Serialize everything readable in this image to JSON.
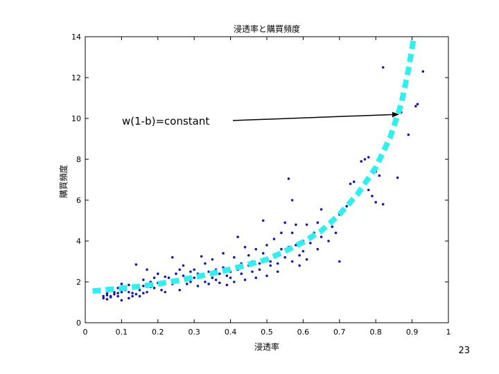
{
  "chart_data": {
    "type": "scatter",
    "title": "浸透率と購買頻度",
    "xlabel": "浸透率",
    "ylabel": "購買頻度",
    "xlim": [
      0,
      1
    ],
    "ylim": [
      0,
      14
    ],
    "x_ticks": [
      "0",
      "0.1",
      "0.2",
      "0.3",
      "0.4",
      "0.5",
      "0.6",
      "0.7",
      "0.8",
      "0.9",
      "1"
    ],
    "y_ticks": [
      "0",
      "2",
      "4",
      "6",
      "8",
      "10",
      "12",
      "14"
    ],
    "grid": false,
    "points": [
      [
        0.05,
        1.2
      ],
      [
        0.05,
        1.3
      ],
      [
        0.06,
        1.15
      ],
      [
        0.06,
        1.35
      ],
      [
        0.06,
        1.45
      ],
      [
        0.07,
        1.3
      ],
      [
        0.07,
        1.25
      ],
      [
        0.07,
        1.6
      ],
      [
        0.08,
        1.4
      ],
      [
        0.08,
        1.5
      ],
      [
        0.09,
        1.3
      ],
      [
        0.09,
        1.45
      ],
      [
        0.09,
        1.7
      ],
      [
        0.1,
        1.1
      ],
      [
        0.1,
        1.5
      ],
      [
        0.1,
        1.9
      ],
      [
        0.11,
        1.6
      ],
      [
        0.11,
        1.75
      ],
      [
        0.12,
        1.2
      ],
      [
        0.12,
        1.5
      ],
      [
        0.12,
        1.85
      ],
      [
        0.13,
        1.3
      ],
      [
        0.13,
        1.45
      ],
      [
        0.14,
        1.4
      ],
      [
        0.14,
        2.85
      ],
      [
        0.15,
        1.3
      ],
      [
        0.15,
        1.6
      ],
      [
        0.16,
        1.45
      ],
      [
        0.16,
        1.8
      ],
      [
        0.16,
        2.1
      ],
      [
        0.17,
        1.5
      ],
      [
        0.17,
        2.6
      ],
      [
        0.18,
        1.75
      ],
      [
        0.18,
        2.0
      ],
      [
        0.19,
        1.7
      ],
      [
        0.19,
        2.2
      ],
      [
        0.2,
        1.95
      ],
      [
        0.2,
        2.4
      ],
      [
        0.21,
        1.6
      ],
      [
        0.21,
        1.9
      ],
      [
        0.22,
        1.5
      ],
      [
        0.22,
        2.25
      ],
      [
        0.23,
        2.2
      ],
      [
        0.24,
        1.9
      ],
      [
        0.24,
        3.2
      ],
      [
        0.25,
        2.05
      ],
      [
        0.25,
        2.4
      ],
      [
        0.26,
        1.6
      ],
      [
        0.26,
        2.6
      ],
      [
        0.27,
        2.3
      ],
      [
        0.27,
        2.8
      ],
      [
        0.28,
        1.9
      ],
      [
        0.28,
        2.1
      ],
      [
        0.29,
        2.0
      ],
      [
        0.29,
        2.5
      ],
      [
        0.3,
        2.2
      ],
      [
        0.3,
        2.6
      ],
      [
        0.31,
        1.8
      ],
      [
        0.31,
        2.4
      ],
      [
        0.32,
        2.3
      ],
      [
        0.32,
        3.25
      ],
      [
        0.33,
        2.0
      ],
      [
        0.33,
        2.9
      ],
      [
        0.34,
        1.9
      ],
      [
        0.34,
        2.5
      ],
      [
        0.35,
        2.2
      ],
      [
        0.35,
        3.1
      ],
      [
        0.36,
        2.6
      ],
      [
        0.36,
        2.1
      ],
      [
        0.37,
        1.95
      ],
      [
        0.37,
        2.4
      ],
      [
        0.38,
        2.7
      ],
      [
        0.38,
        3.4
      ],
      [
        0.39,
        2.3
      ],
      [
        0.39,
        1.85
      ],
      [
        0.4,
        2.5
      ],
      [
        0.4,
        2.2
      ],
      [
        0.41,
        2.0
      ],
      [
        0.41,
        3.2
      ],
      [
        0.42,
        2.6
      ],
      [
        0.42,
        4.2
      ],
      [
        0.43,
        2.4
      ],
      [
        0.43,
        2.9
      ],
      [
        0.44,
        2.1
      ],
      [
        0.44,
        3.7
      ],
      [
        0.45,
        2.8
      ],
      [
        0.45,
        3.3
      ],
      [
        0.46,
        2.5
      ],
      [
        0.46,
        3.0
      ],
      [
        0.47,
        2.2
      ],
      [
        0.47,
        3.6
      ],
      [
        0.48,
        2.9
      ],
      [
        0.48,
        2.6
      ],
      [
        0.49,
        3.4
      ],
      [
        0.49,
        5.0
      ],
      [
        0.5,
        2.3
      ],
      [
        0.5,
        3.8
      ],
      [
        0.51,
        2.8
      ],
      [
        0.51,
        3.0
      ],
      [
        0.52,
        3.3
      ],
      [
        0.52,
        4.1
      ],
      [
        0.53,
        2.9
      ],
      [
        0.53,
        2.5
      ],
      [
        0.54,
        3.6
      ],
      [
        0.54,
        4.4
      ],
      [
        0.55,
        3.2
      ],
      [
        0.55,
        4.9
      ],
      [
        0.56,
        3.7
      ],
      [
        0.56,
        7.05
      ],
      [
        0.57,
        3.0
      ],
      [
        0.57,
        4.4
      ],
      [
        0.57,
        6.0
      ],
      [
        0.58,
        3.8
      ],
      [
        0.58,
        4.8
      ],
      [
        0.59,
        3.3
      ],
      [
        0.59,
        2.8
      ],
      [
        0.6,
        4.0
      ],
      [
        0.6,
        3.5
      ],
      [
        0.61,
        4.8
      ],
      [
        0.61,
        3.1
      ],
      [
        0.62,
        3.9
      ],
      [
        0.63,
        4.4
      ],
      [
        0.64,
        3.6
      ],
      [
        0.64,
        4.9
      ],
      [
        0.65,
        5.55
      ],
      [
        0.65,
        4.2
      ],
      [
        0.66,
        4.6
      ],
      [
        0.67,
        4.0
      ],
      [
        0.68,
        4.7
      ],
      [
        0.69,
        4.4
      ],
      [
        0.7,
        3.0
      ],
      [
        0.7,
        5.3
      ],
      [
        0.72,
        5.7
      ],
      [
        0.73,
        6.8
      ],
      [
        0.74,
        6.9
      ],
      [
        0.76,
        7.9
      ],
      [
        0.77,
        8.0
      ],
      [
        0.78,
        6.5
      ],
      [
        0.78,
        8.1
      ],
      [
        0.79,
        6.2
      ],
      [
        0.8,
        7.4
      ],
      [
        0.8,
        5.9
      ],
      [
        0.81,
        7.2
      ],
      [
        0.82,
        5.8
      ],
      [
        0.82,
        12.5
      ],
      [
        0.86,
        7.1
      ],
      [
        0.87,
        10.3
      ],
      [
        0.89,
        9.2
      ],
      [
        0.91,
        10.6
      ],
      [
        0.915,
        10.7
      ],
      [
        0.93,
        12.3
      ]
    ],
    "curve": [
      [
        0.02,
        1.55
      ],
      [
        0.05,
        1.6
      ],
      [
        0.1,
        1.68
      ],
      [
        0.15,
        1.78
      ],
      [
        0.2,
        1.9
      ],
      [
        0.25,
        2.05
      ],
      [
        0.3,
        2.22
      ],
      [
        0.35,
        2.42
      ],
      [
        0.4,
        2.62
      ],
      [
        0.45,
        2.85
      ],
      [
        0.5,
        3.1
      ],
      [
        0.55,
        3.5
      ],
      [
        0.6,
        3.95
      ],
      [
        0.65,
        4.5
      ],
      [
        0.7,
        5.3
      ],
      [
        0.75,
        6.3
      ],
      [
        0.8,
        7.6
      ],
      [
        0.84,
        9.1
      ],
      [
        0.87,
        10.7
      ],
      [
        0.89,
        12.4
      ],
      [
        0.905,
        14.1
      ]
    ],
    "annotation": {
      "text": "w(1-b)=constant",
      "target_x": 0.87,
      "target_y": 10.2
    },
    "colors": {
      "points": "#1616a8",
      "curve": "#2ef0f0",
      "axis": "#000000"
    }
  },
  "page_number": "23"
}
